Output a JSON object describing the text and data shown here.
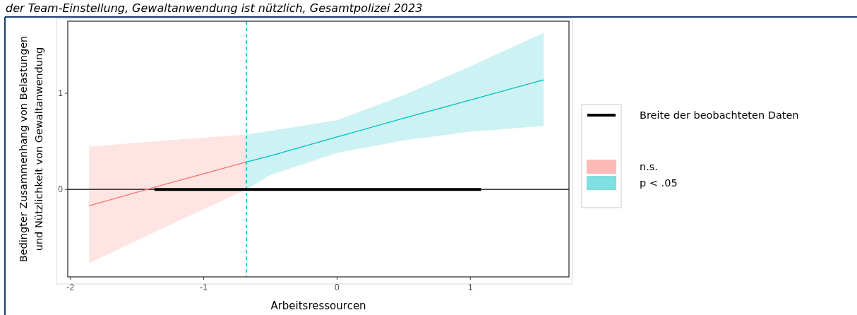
{
  "chart_data": {
    "type": "line",
    "title": "der Team-Einstellung, Gewaltanwendung ist nützlich, Gesamtpolizei 2023",
    "xlabel": "Arbeitsressourcen",
    "ylabel": "Bedingter Zusammenhang von Belastungen\nund Nützlichkeit von Gewaltanwendung",
    "xlim": [
      -2.02,
      1.74
    ],
    "xticks": [
      -2,
      -1,
      0,
      1
    ],
    "ylim": [
      -0.91,
      1.75
    ],
    "yticks": [
      0,
      1
    ],
    "grid": false,
    "legend": "right",
    "series": [
      {
        "name": "n.s.",
        "color": "#f8766d",
        "x": [
          -1.86,
          -1.27,
          -0.68
        ],
        "values": [
          -0.17,
          0.06,
          0.285
        ],
        "lower": [
          -0.77,
          -0.38,
          0
        ],
        "upper": [
          0.445,
          0.51,
          0.57
        ]
      },
      {
        "name": "p < .05",
        "color": "#00bfc4",
        "x": [
          -0.68,
          -0.5,
          0,
          0.5,
          1,
          1.55
        ],
        "values": [
          0.285,
          0.35,
          0.545,
          0.74,
          0.93,
          1.14
        ],
        "lower": [
          0,
          0.15,
          0.38,
          0.51,
          0.6,
          0.66
        ],
        "upper": [
          0.57,
          0.61,
          0.72,
          0.98,
          1.28,
          1.63
        ]
      },
      {
        "name": "Breite der beobachteten Daten",
        "color": "#000000",
        "x": [
          -1.37,
          1.08
        ],
        "values": [
          0,
          0
        ]
      }
    ],
    "ref_lines": [
      {
        "axis": "y",
        "value": 0,
        "color": "#000000",
        "line_style": "solid"
      },
      {
        "axis": "x",
        "value": -0.68,
        "color": "#00bfc4",
        "line_style": "dashed"
      }
    ]
  }
}
